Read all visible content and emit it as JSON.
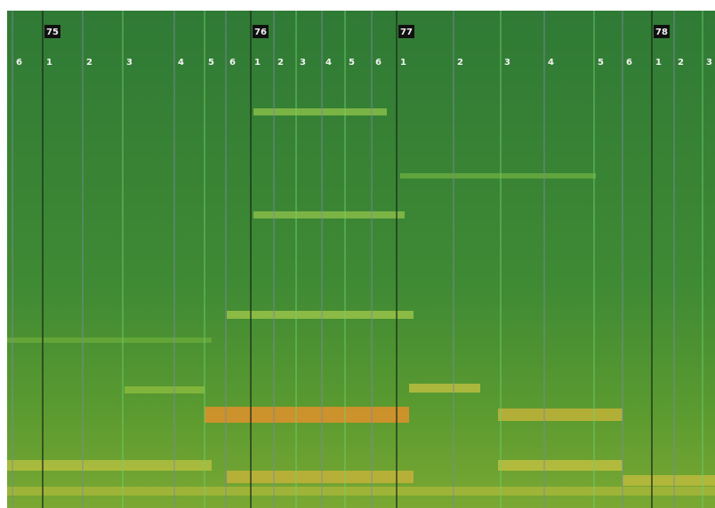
{
  "bars": [
    "75",
    "76",
    "77",
    "78"
  ],
  "beats": [
    "6",
    "1",
    "2",
    "3",
    "4",
    "5",
    "6",
    "1",
    "2",
    "3",
    "4",
    "5",
    "6",
    "1",
    "2",
    "3",
    "4",
    "5",
    "6",
    "1",
    "2",
    "3"
  ]
}
